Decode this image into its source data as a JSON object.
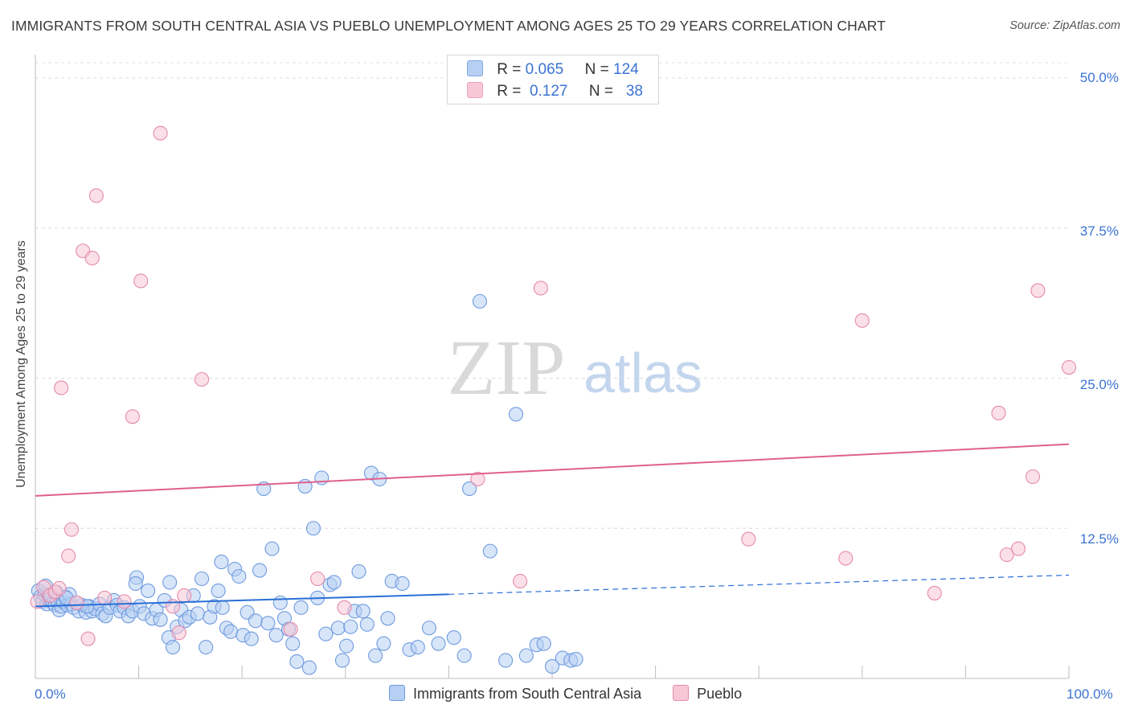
{
  "title": "IMMIGRANTS FROM SOUTH CENTRAL ASIA VS PUEBLO UNEMPLOYMENT AMONG AGES 25 TO 29 YEARS CORRELATION CHART",
  "source": "Source: ZipAtlas.com",
  "watermark": {
    "zip": "ZIP",
    "atlas": "atlas"
  },
  "legend": {
    "rows": [
      {
        "r_label": "R =",
        "r_value": "0.065",
        "n_label": "N =",
        "n_value": "124",
        "color": "#b6cff2",
        "border": "#7fa9e6"
      },
      {
        "r_label": "R =",
        "r_value": "0.127",
        "n_label": "N =",
        "n_value": "38",
        "color": "#f7c7d6",
        "border": "#eba2bb"
      }
    ]
  },
  "bottom_legend": [
    {
      "label": "Immigrants from South Central Asia",
      "color": "#b6cff2",
      "border": "#6f9be0"
    },
    {
      "label": "Pueblo",
      "color": "#f7c7d6",
      "border": "#e58aab"
    }
  ],
  "chart_data": {
    "type": "scatter",
    "title": "IMMIGRANTS FROM SOUTH CENTRAL ASIA VS PUEBLO UNEMPLOYMENT AMONG AGES 25 TO 29 YEARS CORRELATION CHART",
    "xlabel": "",
    "ylabel": "Unemployment Among Ages 25 to 29 years",
    "xlim": [
      0,
      100
    ],
    "ylim": [
      0,
      50
    ],
    "x_ticks": [
      "0.0%",
      "100.0%"
    ],
    "y_ticks": [
      {
        "value": 50.0,
        "label": "50.0%"
      },
      {
        "value": 37.5,
        "label": "37.5%"
      },
      {
        "value": 25.0,
        "label": "25.0%"
      },
      {
        "value": 12.5,
        "label": "12.5%"
      }
    ],
    "grid": true,
    "series": [
      {
        "name": "Immigrants from South Central Asia",
        "color": "#6f9be0",
        "fill": "#b6cff2",
        "trend": {
          "solid": [
            [
              0,
              6.0
            ],
            [
              40,
              7.0
            ]
          ],
          "dashed": [
            [
              40,
              7.0
            ],
            [
              100,
              8.6
            ]
          ],
          "color": "#2a6fd6"
        },
        "points": [
          [
            0.3,
            7.3
          ],
          [
            0.5,
            6.8
          ],
          [
            0.7,
            6.4
          ],
          [
            0.9,
            7.0
          ],
          [
            1.1,
            6.2
          ],
          [
            1.3,
            6.6
          ],
          [
            1.5,
            6.9
          ],
          [
            1.7,
            6.3
          ],
          [
            1.9,
            6.1
          ],
          [
            2.1,
            6.5
          ],
          [
            2.3,
            5.7
          ],
          [
            2.5,
            6.0
          ],
          [
            2.7,
            6.4
          ],
          [
            2.9,
            6.8
          ],
          [
            3.1,
            6.1
          ],
          [
            3.3,
            7.0
          ],
          [
            3.5,
            6.2
          ],
          [
            3.7,
            5.9
          ],
          [
            4.2,
            5.6
          ],
          [
            4.5,
            6.1
          ],
          [
            4.9,
            5.5
          ],
          [
            5.2,
            6.0
          ],
          [
            5.5,
            5.6
          ],
          [
            5.8,
            5.8
          ],
          [
            6.2,
            6.2
          ],
          [
            6.5,
            5.4
          ],
          [
            6.8,
            5.2
          ],
          [
            7.2,
            5.9
          ],
          [
            7.6,
            6.5
          ],
          [
            7.9,
            6.1
          ],
          [
            8.2,
            5.6
          ],
          [
            8.6,
            5.9
          ],
          [
            9.0,
            5.2
          ],
          [
            9.4,
            5.6
          ],
          [
            9.8,
            8.4
          ],
          [
            10.1,
            6.0
          ],
          [
            10.5,
            5.4
          ],
          [
            10.9,
            7.3
          ],
          [
            11.3,
            5.0
          ],
          [
            11.7,
            5.7
          ],
          [
            12.1,
            4.9
          ],
          [
            12.5,
            6.5
          ],
          [
            12.9,
            3.4
          ],
          [
            13.3,
            2.6
          ],
          [
            13.7,
            4.3
          ],
          [
            14.1,
            5.7
          ],
          [
            14.5,
            4.8
          ],
          [
            14.9,
            5.1
          ],
          [
            15.3,
            6.9
          ],
          [
            15.7,
            5.4
          ],
          [
            16.1,
            8.3
          ],
          [
            16.5,
            2.6
          ],
          [
            16.9,
            5.1
          ],
          [
            17.3,
            6.0
          ],
          [
            17.7,
            7.3
          ],
          [
            18.1,
            5.9
          ],
          [
            18.5,
            4.2
          ],
          [
            18.9,
            3.9
          ],
          [
            19.3,
            9.1
          ],
          [
            19.7,
            8.5
          ],
          [
            20.1,
            3.6
          ],
          [
            20.5,
            5.5
          ],
          [
            20.9,
            3.3
          ],
          [
            21.3,
            4.8
          ],
          [
            21.7,
            9.0
          ],
          [
            22.1,
            15.8
          ],
          [
            22.5,
            4.6
          ],
          [
            22.9,
            10.8
          ],
          [
            23.3,
            3.6
          ],
          [
            23.7,
            6.3
          ],
          [
            24.1,
            5.0
          ],
          [
            24.5,
            4.1
          ],
          [
            24.9,
            2.9
          ],
          [
            25.3,
            1.4
          ],
          [
            25.7,
            5.9
          ],
          [
            26.1,
            16.0
          ],
          [
            26.5,
            0.9
          ],
          [
            26.9,
            12.5
          ],
          [
            27.3,
            6.7
          ],
          [
            27.7,
            16.7
          ],
          [
            28.1,
            3.7
          ],
          [
            28.5,
            7.8
          ],
          [
            28.9,
            8.0
          ],
          [
            29.3,
            4.2
          ],
          [
            29.7,
            1.5
          ],
          [
            30.1,
            2.7
          ],
          [
            30.5,
            4.3
          ],
          [
            30.9,
            5.6
          ],
          [
            31.3,
            8.9
          ],
          [
            31.7,
            5.6
          ],
          [
            32.1,
            4.5
          ],
          [
            32.5,
            17.1
          ],
          [
            32.9,
            1.9
          ],
          [
            33.3,
            16.6
          ],
          [
            33.7,
            2.9
          ],
          [
            34.1,
            5.0
          ],
          [
            34.5,
            8.1
          ],
          [
            35.5,
            7.9
          ],
          [
            36.2,
            2.4
          ],
          [
            37.0,
            2.6
          ],
          [
            38.1,
            4.2
          ],
          [
            39.0,
            2.9
          ],
          [
            40.5,
            3.4
          ],
          [
            41.5,
            1.9
          ],
          [
            42.0,
            15.8
          ],
          [
            43.0,
            31.4
          ],
          [
            44.0,
            10.6
          ],
          [
            45.5,
            1.5
          ],
          [
            46.5,
            22.0
          ],
          [
            47.5,
            1.9
          ],
          [
            48.5,
            2.8
          ],
          [
            49.2,
            2.9
          ],
          [
            50.0,
            1.0
          ],
          [
            51.0,
            1.7
          ],
          [
            51.8,
            1.5
          ],
          [
            52.3,
            1.6
          ],
          [
            13.0,
            8.0
          ],
          [
            18.0,
            9.7
          ],
          [
            9.7,
            7.9
          ],
          [
            1.0,
            7.7
          ],
          [
            2.0,
            7.2
          ],
          [
            3.0,
            6.7
          ],
          [
            4.0,
            6.3
          ],
          [
            5.0,
            6.0
          ]
        ]
      },
      {
        "name": "Pueblo",
        "color": "#e58aab",
        "fill": "#f7c7d6",
        "trend": {
          "solid": [
            [
              0,
              15.2
            ],
            [
              100,
              19.5
            ]
          ],
          "color": "#e0608e"
        },
        "points": [
          [
            0.2,
            6.4
          ],
          [
            0.8,
            7.6
          ],
          [
            1.4,
            6.9
          ],
          [
            1.9,
            7.2
          ],
          [
            2.3,
            7.5
          ],
          [
            2.5,
            24.2
          ],
          [
            3.2,
            10.2
          ],
          [
            3.5,
            12.4
          ],
          [
            4.0,
            6.3
          ],
          [
            4.6,
            35.6
          ],
          [
            5.1,
            3.3
          ],
          [
            5.5,
            35.0
          ],
          [
            5.9,
            40.2
          ],
          [
            6.7,
            6.7
          ],
          [
            8.6,
            6.4
          ],
          [
            9.4,
            21.8
          ],
          [
            10.2,
            33.1
          ],
          [
            12.1,
            45.4
          ],
          [
            13.3,
            6.0
          ],
          [
            13.9,
            3.8
          ],
          [
            14.4,
            6.9
          ],
          [
            16.1,
            24.9
          ],
          [
            24.7,
            4.1
          ],
          [
            27.3,
            8.3
          ],
          [
            29.9,
            5.9
          ],
          [
            42.8,
            16.6
          ],
          [
            46.9,
            8.1
          ],
          [
            48.9,
            32.5
          ],
          [
            69.0,
            11.6
          ],
          [
            78.4,
            10.0
          ],
          [
            80.0,
            29.8
          ],
          [
            87.0,
            7.1
          ],
          [
            93.2,
            22.1
          ],
          [
            94.0,
            10.3
          ],
          [
            95.1,
            10.8
          ],
          [
            96.5,
            16.8
          ],
          [
            97.0,
            32.3
          ],
          [
            100.0,
            25.9
          ]
        ]
      }
    ]
  }
}
